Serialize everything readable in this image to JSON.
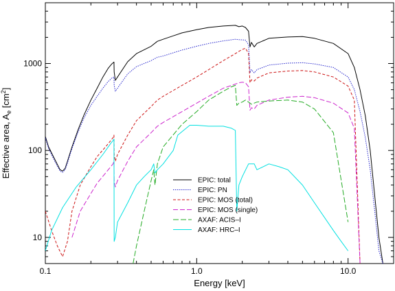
{
  "chart_data": {
    "type": "line",
    "xlabel": "Energy [keV]",
    "ylabel": {
      "main": "Effective area, A",
      "sub": "e",
      "unit_open": " [cm",
      "sup": "2",
      "unit_close": "]"
    },
    "x_scale": "log",
    "y_scale": "log",
    "xlim": [
      0.1,
      20
    ],
    "ylim": [
      5,
      5000
    ],
    "grid": false,
    "legend_position": "center-bottom",
    "x_tick_labels": [
      {
        "value": 0.1,
        "label": "0.1"
      },
      {
        "value": 1,
        "label": "1.0"
      },
      {
        "value": 10,
        "label": "10.0"
      }
    ],
    "y_tick_labels": [
      {
        "value": 10,
        "label": "10"
      },
      {
        "value": 100,
        "label": "100"
      },
      {
        "value": 1000,
        "label": "1000"
      }
    ],
    "series": [
      {
        "name": "EPIC: total",
        "color": "#000000",
        "dash": "",
        "points": [
          [
            0.1,
            145
          ],
          [
            0.105,
            110
          ],
          [
            0.115,
            80
          ],
          [
            0.125,
            60
          ],
          [
            0.13,
            58
          ],
          [
            0.135,
            62
          ],
          [
            0.14,
            75
          ],
          [
            0.15,
            110
          ],
          [
            0.165,
            175
          ],
          [
            0.18,
            255
          ],
          [
            0.2,
            380
          ],
          [
            0.22,
            520
          ],
          [
            0.24,
            700
          ],
          [
            0.26,
            880
          ],
          [
            0.275,
            990
          ],
          [
            0.284,
            1040
          ],
          [
            0.285,
            800
          ],
          [
            0.29,
            640
          ],
          [
            0.3,
            700
          ],
          [
            0.35,
            1050
          ],
          [
            0.4,
            1300
          ],
          [
            0.5,
            1580
          ],
          [
            0.55,
            1800
          ],
          [
            0.6,
            1900
          ],
          [
            0.8,
            2250
          ],
          [
            1.0,
            2450
          ],
          [
            1.2,
            2600
          ],
          [
            1.5,
            2700
          ],
          [
            1.8,
            2750
          ],
          [
            1.9,
            2650
          ],
          [
            2.0,
            2700
          ],
          [
            2.1,
            2600
          ],
          [
            2.2,
            2350
          ],
          [
            2.25,
            1550
          ],
          [
            2.3,
            1750
          ],
          [
            2.4,
            1550
          ],
          [
            2.5,
            1700
          ],
          [
            3.0,
            1950
          ],
          [
            4.0,
            2020
          ],
          [
            5.0,
            2040
          ],
          [
            6.0,
            1950
          ],
          [
            8.0,
            1700
          ],
          [
            10.0,
            1300
          ],
          [
            11.0,
            900
          ],
          [
            12.0,
            500
          ],
          [
            13.0,
            250
          ],
          [
            14.0,
            100
          ],
          [
            15.0,
            30
          ],
          [
            16.0,
            10
          ],
          [
            17.0,
            5
          ]
        ]
      },
      {
        "name": "EPIC: PN",
        "color": "#2222cc",
        "dash": "1.5,1.5",
        "points": [
          [
            0.1,
            140
          ],
          [
            0.105,
            105
          ],
          [
            0.115,
            76
          ],
          [
            0.125,
            58
          ],
          [
            0.13,
            56
          ],
          [
            0.135,
            60
          ],
          [
            0.14,
            72
          ],
          [
            0.15,
            105
          ],
          [
            0.165,
            165
          ],
          [
            0.18,
            235
          ],
          [
            0.2,
            330
          ],
          [
            0.22,
            420
          ],
          [
            0.24,
            520
          ],
          [
            0.26,
            620
          ],
          [
            0.275,
            680
          ],
          [
            0.284,
            700
          ],
          [
            0.285,
            560
          ],
          [
            0.29,
            480
          ],
          [
            0.3,
            520
          ],
          [
            0.35,
            760
          ],
          [
            0.4,
            920
          ],
          [
            0.5,
            1080
          ],
          [
            0.55,
            1180
          ],
          [
            0.6,
            1220
          ],
          [
            0.8,
            1430
          ],
          [
            1.0,
            1580
          ],
          [
            1.2,
            1700
          ],
          [
            1.5,
            1820
          ],
          [
            1.8,
            1900
          ],
          [
            1.9,
            1880
          ],
          [
            2.0,
            1870
          ],
          [
            2.1,
            1860
          ],
          [
            2.2,
            1650
          ],
          [
            2.25,
            780
          ],
          [
            2.3,
            850
          ],
          [
            2.4,
            780
          ],
          [
            2.5,
            850
          ],
          [
            3.0,
            960
          ],
          [
            4.0,
            1010
          ],
          [
            5.0,
            1020
          ],
          [
            6.0,
            990
          ],
          [
            8.0,
            900
          ],
          [
            10.0,
            700
          ],
          [
            11.0,
            500
          ],
          [
            12.0,
            280
          ],
          [
            13.0,
            140
          ],
          [
            14.0,
            60
          ],
          [
            15.0,
            20
          ],
          [
            16.0,
            7
          ],
          [
            17.0,
            5
          ]
        ]
      },
      {
        "name": "EPIC: MOS (total)",
        "color": "#cc1111",
        "dash": "4,2.5",
        "points": [
          [
            0.1,
            20
          ],
          [
            0.11,
            12
          ],
          [
            0.12,
            8
          ],
          [
            0.13,
            6
          ],
          [
            0.14,
            9
          ],
          [
            0.15,
            20
          ],
          [
            0.17,
            40
          ],
          [
            0.2,
            65
          ],
          [
            0.22,
            85
          ],
          [
            0.25,
            110
          ],
          [
            0.28,
            140
          ],
          [
            0.284,
            150
          ],
          [
            0.285,
            90
          ],
          [
            0.29,
            75
          ],
          [
            0.3,
            90
          ],
          [
            0.35,
            150
          ],
          [
            0.4,
            220
          ],
          [
            0.5,
            320
          ],
          [
            0.55,
            380
          ],
          [
            0.6,
            420
          ],
          [
            0.8,
            560
          ],
          [
            1.0,
            700
          ],
          [
            1.2,
            850
          ],
          [
            1.5,
            1080
          ],
          [
            1.8,
            1300
          ],
          [
            1.9,
            1380
          ],
          [
            2.0,
            1450
          ],
          [
            2.1,
            1500
          ],
          [
            2.2,
            1300
          ],
          [
            2.25,
            600
          ],
          [
            2.3,
            650
          ],
          [
            2.4,
            630
          ],
          [
            2.5,
            680
          ],
          [
            3.0,
            780
          ],
          [
            4.0,
            820
          ],
          [
            5.0,
            830
          ],
          [
            6.0,
            800
          ],
          [
            8.0,
            700
          ],
          [
            10.0,
            550
          ],
          [
            11.0,
            380
          ],
          [
            12.0,
            5
          ]
        ]
      },
      {
        "name": "EPIC: MOS (single)",
        "color": "#cc22cc",
        "dash": "7,3",
        "points": [
          [
            0.15,
            10
          ],
          [
            0.17,
            20
          ],
          [
            0.2,
            32
          ],
          [
            0.22,
            42
          ],
          [
            0.25,
            55
          ],
          [
            0.28,
            70
          ],
          [
            0.284,
            75
          ],
          [
            0.285,
            45
          ],
          [
            0.29,
            38
          ],
          [
            0.3,
            45
          ],
          [
            0.35,
            75
          ],
          [
            0.4,
            110
          ],
          [
            0.5,
            160
          ],
          [
            0.55,
            190
          ],
          [
            0.6,
            210
          ],
          [
            0.8,
            280
          ],
          [
            1.0,
            350
          ],
          [
            1.2,
            420
          ],
          [
            1.5,
            520
          ],
          [
            1.8,
            580
          ],
          [
            1.9,
            600
          ],
          [
            2.0,
            610
          ],
          [
            2.1,
            600
          ],
          [
            2.2,
            540
          ],
          [
            2.25,
            290
          ],
          [
            2.3,
            310
          ],
          [
            2.4,
            300
          ],
          [
            2.5,
            330
          ],
          [
            3.0,
            380
          ],
          [
            4.0,
            410
          ],
          [
            5.0,
            420
          ],
          [
            6.0,
            405
          ],
          [
            8.0,
            350
          ],
          [
            10.0,
            270
          ],
          [
            11.0,
            180
          ],
          [
            12.0,
            5
          ]
        ]
      },
      {
        "name": "AXAF: ACIS–I",
        "color": "#22aa22",
        "dash": "8,3",
        "points": [
          [
            0.38,
            5
          ],
          [
            0.4,
            8
          ],
          [
            0.45,
            20
          ],
          [
            0.5,
            45
          ],
          [
            0.52,
            60
          ],
          [
            0.53,
            40
          ],
          [
            0.55,
            70
          ],
          [
            0.6,
            110
          ],
          [
            0.8,
            200
          ],
          [
            1.0,
            280
          ],
          [
            1.2,
            380
          ],
          [
            1.5,
            480
          ],
          [
            1.7,
            540
          ],
          [
            1.8,
            560
          ],
          [
            1.84,
            330
          ],
          [
            1.9,
            350
          ],
          [
            2.0,
            360
          ],
          [
            2.1,
            380
          ],
          [
            2.2,
            360
          ],
          [
            2.3,
            340
          ],
          [
            2.5,
            360
          ],
          [
            3.0,
            370
          ],
          [
            4.0,
            380
          ],
          [
            5.0,
            360
          ],
          [
            6.0,
            300
          ],
          [
            8.0,
            160
          ],
          [
            10.0,
            15
          ]
        ]
      },
      {
        "name": "AXAF: HRC–I",
        "color": "#00e0e0",
        "dash": "",
        "points": [
          [
            0.1,
            7
          ],
          [
            0.11,
            12
          ],
          [
            0.13,
            22
          ],
          [
            0.16,
            38
          ],
          [
            0.2,
            60
          ],
          [
            0.24,
            90
          ],
          [
            0.27,
            120
          ],
          [
            0.28,
            130
          ],
          [
            0.284,
            135
          ],
          [
            0.285,
            9
          ],
          [
            0.29,
            10
          ],
          [
            0.3,
            15
          ],
          [
            0.35,
            25
          ],
          [
            0.4,
            40
          ],
          [
            0.45,
            50
          ],
          [
            0.5,
            60
          ],
          [
            0.52,
            70
          ],
          [
            0.53,
            55
          ],
          [
            0.55,
            60
          ],
          [
            0.6,
            70
          ],
          [
            0.7,
            100
          ],
          [
            0.75,
            150
          ],
          [
            0.8,
            165
          ],
          [
            0.9,
            195
          ],
          [
            1.0,
            195
          ],
          [
            1.2,
            190
          ],
          [
            1.5,
            190
          ],
          [
            1.7,
            180
          ],
          [
            1.8,
            170
          ],
          [
            1.84,
            20
          ],
          [
            1.9,
            40
          ],
          [
            2.0,
            50
          ],
          [
            2.2,
            70
          ],
          [
            2.4,
            70
          ],
          [
            2.5,
            60
          ],
          [
            3.0,
            70
          ],
          [
            3.5,
            65
          ],
          [
            4.0,
            60
          ],
          [
            5.0,
            40
          ],
          [
            6.0,
            25
          ],
          [
            8.0,
            12
          ],
          [
            9.0,
            9
          ],
          [
            10.0,
            7
          ]
        ]
      }
    ]
  }
}
